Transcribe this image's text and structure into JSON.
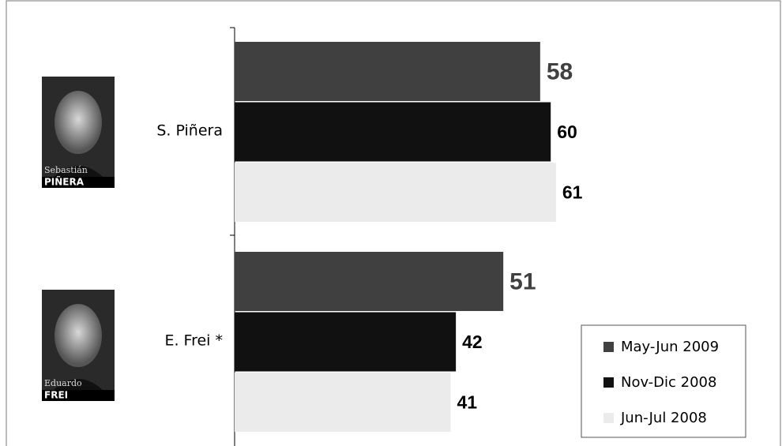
{
  "chart_data": {
    "type": "bar",
    "orientation": "horizontal",
    "categories": [
      "S. Piñera",
      "E. Frei *"
    ],
    "image_labels": [
      [
        "Sebastián",
        "PIÑERA"
      ],
      [
        "Eduardo",
        "FREI"
      ]
    ],
    "series": [
      {
        "name": "May-Jun 2009",
        "color": "#404040",
        "values": [
          58,
          51
        ]
      },
      {
        "name": "Nov-Dic 2008",
        "color": "#111111",
        "values": [
          60,
          42
        ]
      },
      {
        "name": "Jun-Jul 2008",
        "color": "#ebebeb",
        "values": [
          61,
          41
        ]
      }
    ],
    "legend": "bottom-right"
  }
}
